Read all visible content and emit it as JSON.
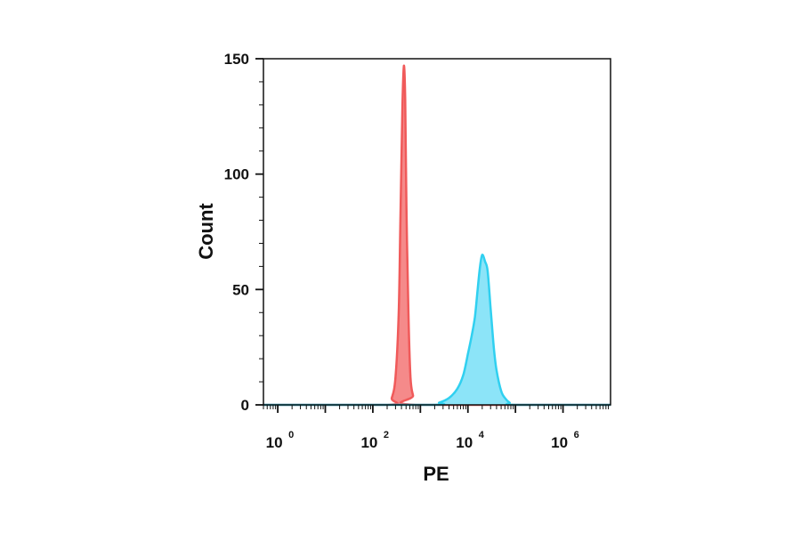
{
  "chart_data": {
    "type": "area",
    "title": "",
    "xlabel": "PE",
    "ylabel": "Count",
    "xscale": "log",
    "xlim": [
      0.5,
      10000000
    ],
    "ylim": [
      0,
      150
    ],
    "x_ticks": [
      {
        "value": 1,
        "base": "10",
        "exp": "0"
      },
      {
        "value": 100,
        "base": "10",
        "exp": "2"
      },
      {
        "value": 10000,
        "base": "10",
        "exp": "4"
      },
      {
        "value": 1000000,
        "base": "10",
        "exp": "6"
      }
    ],
    "y_ticks": [
      {
        "value": 0,
        "label": "0"
      },
      {
        "value": 50,
        "label": "50"
      },
      {
        "value": 100,
        "label": "100"
      },
      {
        "value": 150,
        "label": "150"
      }
    ],
    "grid": false,
    "legend": "none",
    "series": [
      {
        "color": "#f05a5a",
        "fill": "#f58a8a",
        "x": [
          0.5,
          200,
          250,
          300,
          350,
          380,
          420,
          450,
          480,
          510,
          560,
          620,
          700,
          800,
          10000000
        ],
        "y": [
          0,
          0,
          3,
          12,
          40,
          80,
          130,
          147,
          132,
          85,
          40,
          12,
          4,
          0,
          0
        ]
      },
      {
        "color": "#30d0f0",
        "fill": "#8ce4f8",
        "x": [
          0.5,
          1500,
          2500,
          4000,
          6000,
          8000,
          10000,
          12000,
          14000,
          16000,
          18000,
          20000,
          23000,
          26000,
          30000,
          35000,
          40000,
          50000,
          60000,
          75000,
          100000,
          10000000
        ],
        "y": [
          0,
          0,
          1,
          3,
          7,
          13,
          22,
          30,
          38,
          50,
          60,
          65,
          62,
          58,
          42,
          25,
          15,
          6,
          3,
          1,
          0,
          0
        ]
      }
    ]
  }
}
